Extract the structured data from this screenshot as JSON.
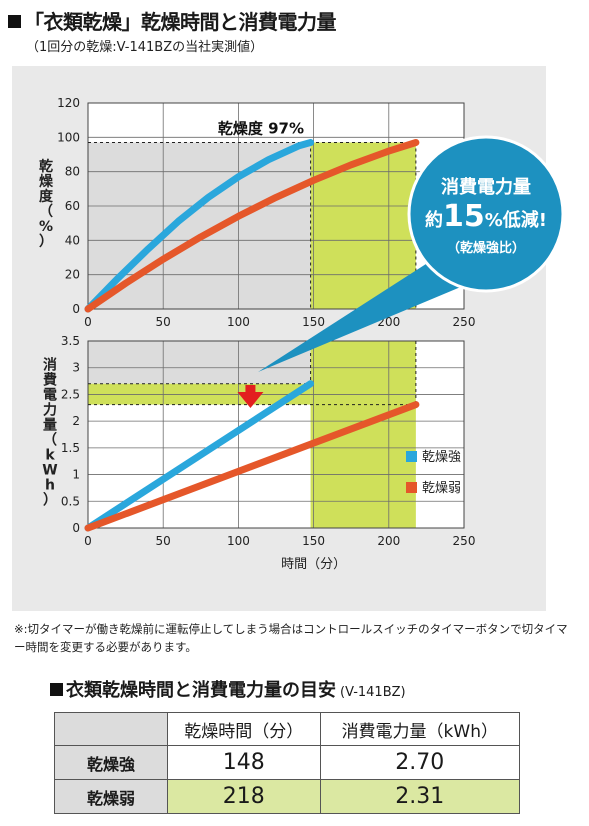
{
  "header": {
    "title": "「衣類乾燥」乾燥時間と消費電力量",
    "subtitle": "（1回分の乾燥:V-141BZの当社実測値）"
  },
  "chart_data": [
    {
      "type": "line",
      "ylabel": "乾燥度（%）",
      "xlim": [
        0,
        250
      ],
      "ylim": [
        0,
        120
      ],
      "x_ticks": [
        0,
        50,
        100,
        150,
        200,
        250
      ],
      "y_ticks": [
        0,
        20,
        40,
        60,
        80,
        100,
        120
      ],
      "annotation": "乾燥度 97%",
      "threshold_y": 97,
      "series": [
        {
          "name": "乾燥強",
          "color": "#2aa7dc",
          "x": [
            0,
            20,
            40,
            60,
            80,
            100,
            120,
            140,
            148
          ],
          "y": [
            0,
            18,
            35,
            51,
            65,
            77,
            87,
            95,
            97
          ]
        },
        {
          "name": "乾燥弱",
          "color": "#e5572a",
          "x": [
            0,
            25,
            50,
            75,
            100,
            125,
            150,
            175,
            200,
            218
          ],
          "y": [
            0,
            15,
            29,
            42,
            54,
            65,
            75,
            84,
            92,
            97
          ]
        }
      ]
    },
    {
      "type": "line",
      "xlabel": "時間（分）",
      "ylabel": "消費電力量（kWh）",
      "xlim": [
        0,
        250
      ],
      "ylim": [
        0,
        3.5
      ],
      "x_ticks": [
        0,
        50,
        100,
        150,
        200,
        250
      ],
      "y_ticks": [
        0,
        0.5,
        1,
        1.5,
        2,
        2.5,
        3,
        3.5
      ],
      "legend_position": "right",
      "series": [
        {
          "name": "乾燥強",
          "color": "#2aa7dc",
          "x": [
            0,
            148
          ],
          "y": [
            0,
            2.7
          ]
        },
        {
          "name": "乾燥弱",
          "color": "#e5572a",
          "x": [
            0,
            218
          ],
          "y": [
            0,
            2.31
          ]
        }
      ]
    }
  ],
  "callout": {
    "line1": "消費電力量",
    "line2_pre": "約",
    "line2_num": "15",
    "line2_post": "%低減!",
    "line3": "（乾燥強比）"
  },
  "colors": {
    "strong": "#2aa7dc",
    "weak": "#e5572a",
    "highlight": "#cfe05a",
    "bubble": "#1d91c0",
    "arrow": "#e31f1f"
  },
  "note": "※:切タイマーが働き乾燥前に運転停止してしまう場合はコントロールスイッチのタイマーボタンで切タイマー時間を変更する必要があります。",
  "table": {
    "title": "衣類乾燥時間と消費電力量の目安",
    "model": "(V-141BZ)",
    "headers": [
      "",
      "乾燥時間（分）",
      "消費電力量（kWh）"
    ],
    "rows": [
      {
        "label": "乾燥強",
        "time": "148",
        "power": "2.70"
      },
      {
        "label": "乾燥弱",
        "time": "218",
        "power": "2.31"
      }
    ]
  }
}
